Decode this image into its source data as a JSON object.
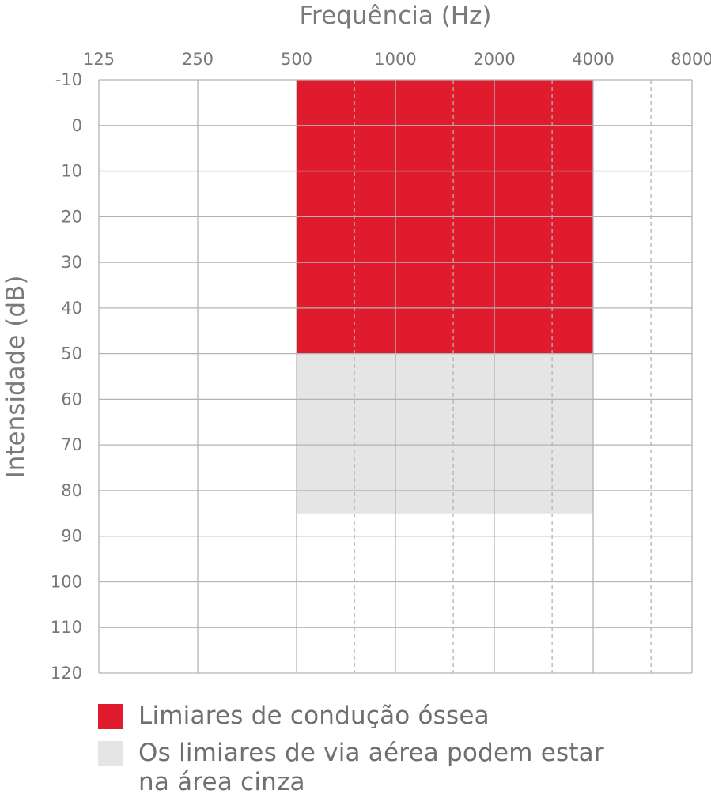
{
  "chart_data": {
    "type": "area",
    "xlabel": "Frequência (Hz)",
    "ylabel": "Intensidade (dB)",
    "x_ticks": [
      "125",
      "250",
      "500",
      "1000",
      "2000",
      "4000",
      "8000"
    ],
    "x_dashed_ticks_hz": [
      750,
      1500,
      3000,
      6000
    ],
    "y_ticks": [
      "-10",
      "0",
      "10",
      "20",
      "30",
      "40",
      "50",
      "60",
      "70",
      "80",
      "90",
      "100",
      "110",
      "120"
    ],
    "ylim": [
      -10,
      120
    ],
    "y_inverted": true,
    "x_scale": "log2",
    "series": [
      {
        "name": "Limiares de condução óssea",
        "color": "#e11b2e",
        "x_range_hz": [
          500,
          4000
        ],
        "y_range_db": [
          -10,
          50
        ]
      },
      {
        "name": "Os limiares de via aérea podem estar na área cinza",
        "color": "#e5e5e5",
        "x_range_hz": [
          500,
          4000
        ],
        "y_range_db": [
          50,
          85
        ]
      }
    ],
    "grid": true
  },
  "legend": {
    "bone": {
      "label": "Limiares de condução óssea",
      "color": "#e11b2e"
    },
    "air": {
      "label_line1": "Os limiares de via aérea podem estar",
      "label_line2": "na área cinza",
      "color": "#e5e5e5"
    }
  }
}
